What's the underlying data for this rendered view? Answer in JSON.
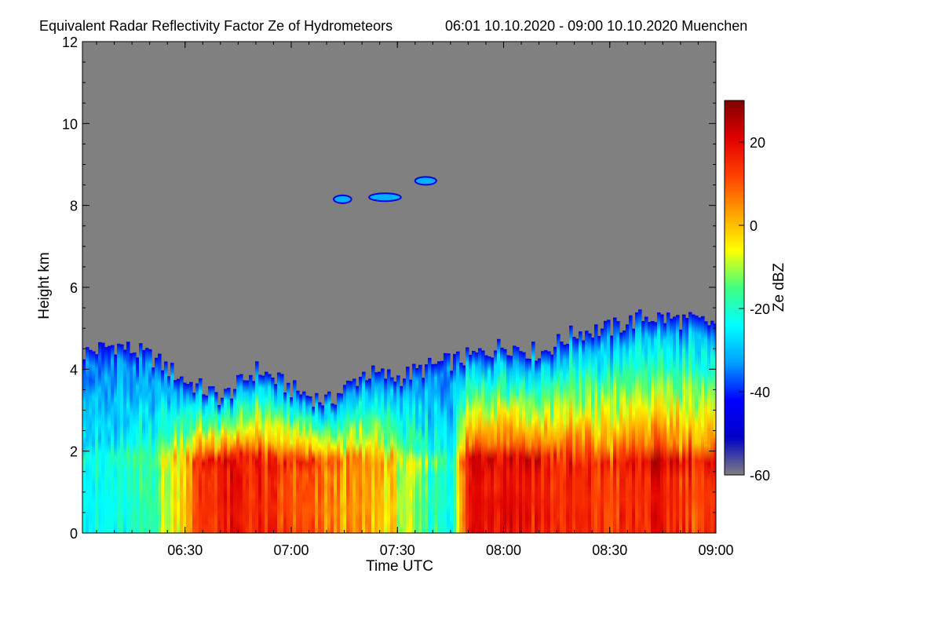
{
  "chart_data": {
    "type": "heatmap",
    "title": "Equivalent Radar Reflectivity Factor Ze of Hydrometeors",
    "subtitle": "06:01 10.10.2020 - 09:00 10.10.2020 Muenchen",
    "xlabel": "Time UTC",
    "ylabel": "Height km",
    "colorbar_label": "Ze dBZ",
    "xlim": [
      "06:01",
      "09:00"
    ],
    "ylim": [
      0,
      12
    ],
    "x_ticks": [
      "06:30",
      "07:00",
      "07:30",
      "08:00",
      "08:30",
      "09:00"
    ],
    "y_ticks": [
      0,
      2,
      4,
      6,
      8,
      10,
      12
    ],
    "colorbar_range": [
      -60,
      30
    ],
    "colorbar_ticks": [
      20,
      0,
      -20,
      -40,
      -60
    ],
    "background_color": "#808080",
    "colormap": [
      "#808080",
      "#0000c8",
      "#0000ff",
      "#00a0ff",
      "#00ffff",
      "#40ff80",
      "#ffff00",
      "#ffa000",
      "#ff4000",
      "#e00000",
      "#800000"
    ],
    "cloud_top_km": [
      [
        "06:01",
        4.4
      ],
      [
        "06:10",
        4.6
      ],
      [
        "06:20",
        4.3
      ],
      [
        "06:30",
        3.7
      ],
      [
        "06:40",
        3.3
      ],
      [
        "06:50",
        4.0
      ],
      [
        "07:00",
        3.5
      ],
      [
        "07:10",
        3.2
      ],
      [
        "07:20",
        3.9
      ],
      [
        "07:30",
        3.8
      ],
      [
        "07:40",
        4.1
      ],
      [
        "07:50",
        4.3
      ],
      [
        "08:00",
        4.6
      ],
      [
        "08:10",
        4.4
      ],
      [
        "08:20",
        4.9
      ],
      [
        "08:30",
        5.0
      ],
      [
        "08:40",
        5.3
      ],
      [
        "08:50",
        5.2
      ],
      [
        "09:00",
        5.1
      ]
    ],
    "melting_layer_km": 1.8,
    "upper_cloud_patches": [
      {
        "start": "07:12",
        "end": "07:17",
        "height_km": 8.15
      },
      {
        "start": "07:22",
        "end": "07:31",
        "height_km": 8.2
      },
      {
        "start": "07:35",
        "end": "07:41",
        "height_km": 8.6
      }
    ],
    "profiles": [
      {
        "x": "06:01",
        "deep": 0.0
      },
      {
        "x": "06:15",
        "deep": 0.05
      },
      {
        "x": "06:25",
        "deep": 0.35
      },
      {
        "x": "06:35",
        "deep": 0.85
      },
      {
        "x": "06:45",
        "deep": 0.9
      },
      {
        "x": "06:55",
        "deep": 0.8
      },
      {
        "x": "07:05",
        "deep": 0.7
      },
      {
        "x": "07:15",
        "deep": 0.6
      },
      {
        "x": "07:25",
        "deep": 0.55
      },
      {
        "x": "07:35",
        "deep": 0.2
      },
      {
        "x": "07:45",
        "deep": 0.1
      },
      {
        "x": "07:50",
        "deep": 0.95
      },
      {
        "x": "08:00",
        "deep": 1.0
      },
      {
        "x": "08:15",
        "deep": 0.85
      },
      {
        "x": "08:30",
        "deep": 0.8
      },
      {
        "x": "08:45",
        "deep": 0.9
      },
      {
        "x": "09:00",
        "deep": 0.75
      }
    ]
  }
}
